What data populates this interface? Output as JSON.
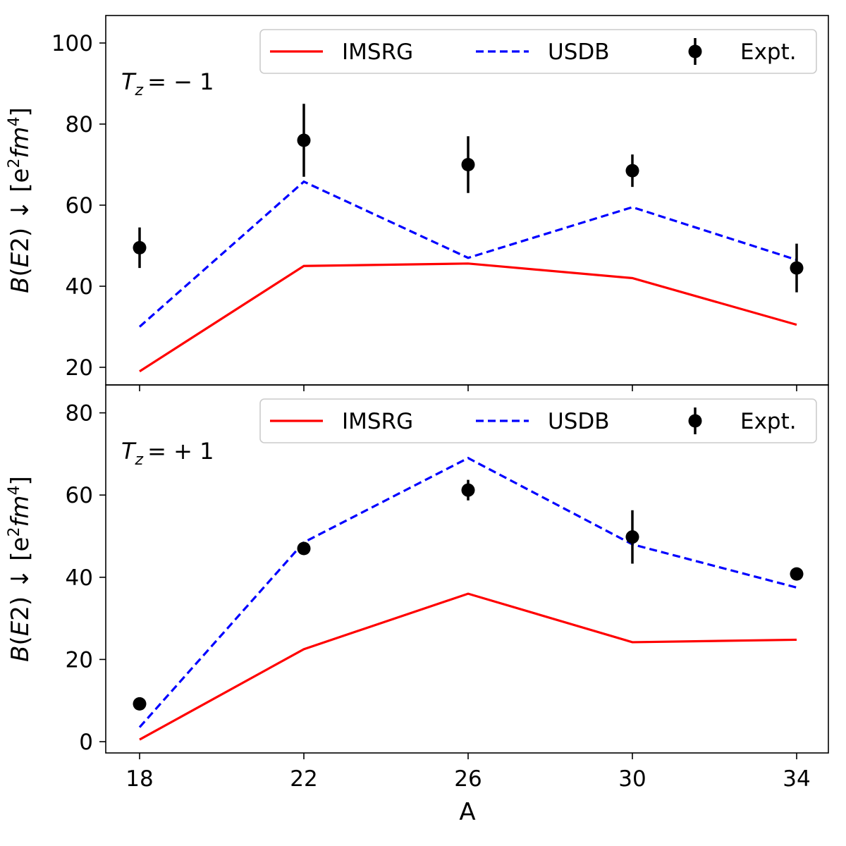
{
  "chart_data": [
    {
      "type": "line",
      "panel": "top",
      "annotation": {
        "var": "T",
        "sub": "z",
        "rest": "= − 1"
      },
      "ylabel": {
        "base": "B(E2) ↓ [e",
        "sup1": "2",
        "mid": "fm",
        "sup2": "4",
        "end": "]"
      },
      "xlabel": "A",
      "x": [
        18,
        22,
        26,
        30,
        34
      ],
      "ylim": [
        15.5,
        106.5
      ],
      "yticks": [
        20,
        40,
        60,
        80,
        100
      ],
      "series": [
        {
          "name": "IMSRG",
          "style": "solid",
          "color": "#ff0000",
          "values": [
            19,
            45,
            45.6,
            42,
            30.5
          ]
        },
        {
          "name": "USDB",
          "style": "dashed",
          "color": "#0000ff",
          "values": [
            30,
            65.8,
            47,
            59.5,
            46.5
          ]
        },
        {
          "name": "Expt.",
          "style": "points",
          "color": "#000000",
          "values": [
            49.5,
            76,
            70,
            68.5,
            44.5
          ],
          "errors": [
            5,
            9,
            7,
            4,
            6
          ]
        }
      ],
      "legend": {
        "location": "top-right",
        "entries": [
          "IMSRG",
          "USDB",
          "Expt."
        ]
      }
    },
    {
      "type": "line",
      "panel": "bottom",
      "annotation": {
        "var": "T",
        "sub": "z",
        "rest": "= + 1"
      },
      "ylabel": {
        "base": "B(E2) ↓ [e",
        "sup1": "2",
        "mid": "fm",
        "sup2": "4",
        "end": "]"
      },
      "xlabel": "A",
      "x": [
        18,
        22,
        26,
        30,
        34
      ],
      "xticks": [
        18,
        22,
        26,
        30,
        34
      ],
      "ylim": [
        -2.5,
        86.5
      ],
      "yticks": [
        0,
        20,
        40,
        60,
        80
      ],
      "series": [
        {
          "name": "IMSRG",
          "style": "solid",
          "color": "#ff0000",
          "values": [
            0.5,
            22.5,
            36,
            24.2,
            24.8
          ]
        },
        {
          "name": "USDB",
          "style": "dashed",
          "color": "#0000ff",
          "values": [
            3.5,
            48.5,
            69,
            48,
            37.5
          ]
        },
        {
          "name": "Expt.",
          "style": "points",
          "color": "#000000",
          "values": [
            9.2,
            47,
            61.2,
            49.8,
            40.8
          ],
          "errors": [
            0,
            0,
            2.5,
            6.5,
            0
          ]
        }
      ],
      "legend": {
        "location": "top-right",
        "entries": [
          "IMSRG",
          "USDB",
          "Expt."
        ]
      }
    }
  ]
}
